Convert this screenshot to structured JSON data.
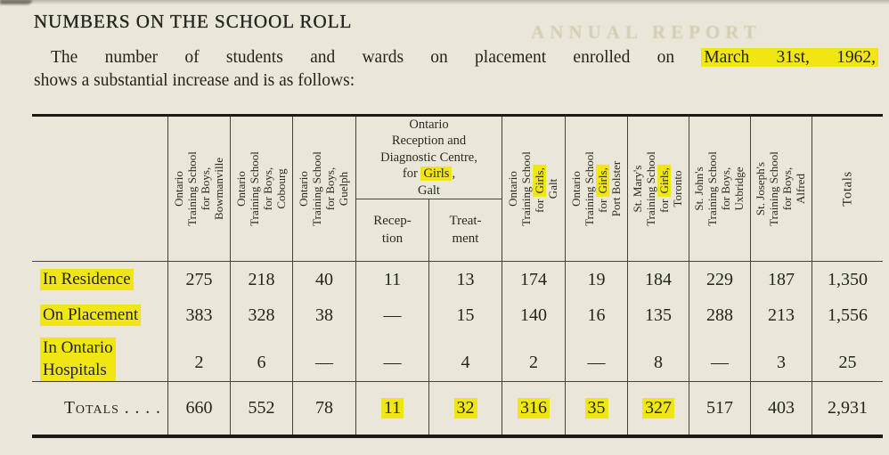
{
  "colors": {
    "highlight": "#f0e712",
    "paper": "#eae6d9",
    "ink": "#26241d"
  },
  "heading": "NUMBERS ON THE SCHOOL ROLL",
  "intro": {
    "line1_pre": "The number of students and wards on placement enrolled on ",
    "line1_highlight": "March 31st, 1962,",
    "line2": "shows a substantial increase and is as follows:"
  },
  "bleedthrough_text": "ANNUAL REPORT",
  "table": {
    "columns": [
      {
        "pre": "Ontario\nTraining School\nfor Boys,\nBowmanville",
        "hl": "",
        "post": ""
      },
      {
        "pre": "Ontario\nTraining School\nfor Boys,\nCobourg",
        "hl": "",
        "post": ""
      },
      {
        "pre": "Ontario\nTraining School\nfor Boys,\nGuelph",
        "hl": "",
        "post": ""
      },
      {
        "pre": "Ontario\nTraining School\nfor ",
        "hl": "Girls,",
        "post": "\nGalt"
      },
      {
        "pre": "Ontario\nTraining School\nfor ",
        "hl": "Girls,",
        "post": "\nPort Bolster"
      },
      {
        "pre": "St. Mary's\nTraining School\nfor ",
        "hl": "Girls,",
        "post": "\nToronto"
      },
      {
        "pre": "St. John's\nTraining School\nfor Boys,\nUxbridge",
        "hl": "",
        "post": ""
      },
      {
        "pre": "St. Joseph's\nTraining School\nfor Boys,\nAlfred",
        "hl": "",
        "post": ""
      },
      {
        "pre": "Totals",
        "hl": "",
        "post": ""
      }
    ],
    "group_header": {
      "pre": "Ontario\nReception and\nDiagnostic Centre,\nfor ",
      "hl": "Girls",
      "post": ",\nGalt"
    },
    "sub_headers": [
      "Recep-\ntion",
      "Treat-\nment"
    ],
    "rows": [
      {
        "label": "In Residence",
        "label_highlight": true,
        "totals": false,
        "values": [
          "275",
          "218",
          "40",
          "11",
          "13",
          "174",
          "19",
          "184",
          "229",
          "187",
          "1,350"
        ],
        "highlight_cols": []
      },
      {
        "label": "On Placement",
        "label_highlight": true,
        "totals": false,
        "values": [
          "383",
          "328",
          "38",
          "—",
          "15",
          "140",
          "16",
          "135",
          "288",
          "213",
          "1,556"
        ],
        "highlight_cols": []
      },
      {
        "label": "In Ontario\nHospitals",
        "label_highlight": true,
        "totals": false,
        "values": [
          "2",
          "6",
          "—",
          "—",
          "4",
          "2",
          "—",
          "8",
          "—",
          "3",
          "25"
        ],
        "highlight_cols": []
      },
      {
        "label": "Totals . . . .",
        "label_highlight": false,
        "totals": true,
        "values": [
          "660",
          "552",
          "78",
          "11",
          "32",
          "316",
          "35",
          "327",
          "517",
          "403",
          "2,931"
        ],
        "highlight_cols": [
          3,
          4,
          5,
          6,
          7
        ]
      }
    ]
  }
}
